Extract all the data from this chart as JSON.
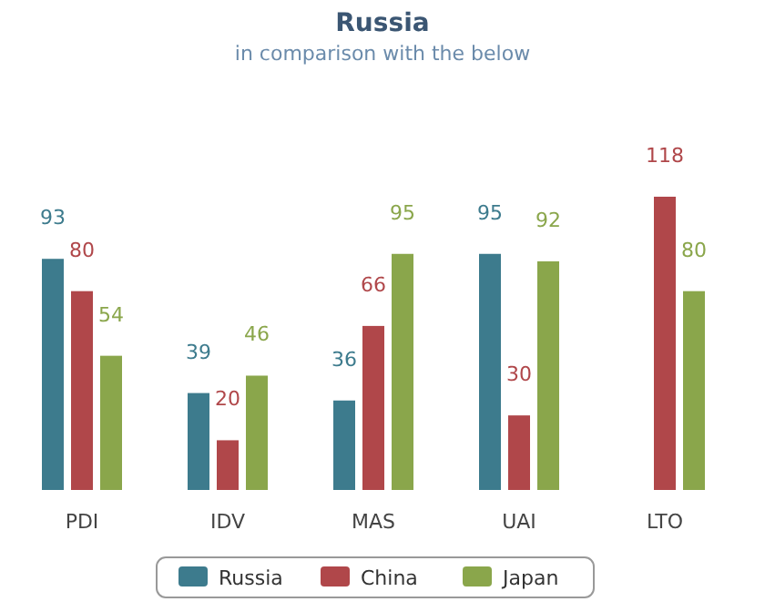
{
  "chart_data": {
    "type": "bar",
    "title": "Russia",
    "subtitle": "in comparison with the below",
    "categories": [
      "PDI",
      "IDV",
      "MAS",
      "UAI",
      "LTO"
    ],
    "series": [
      {
        "name": "Russia",
        "color": "#3d7b8d",
        "values": [
          93,
          39,
          36,
          95,
          null
        ]
      },
      {
        "name": "China",
        "color": "#b0474a",
        "values": [
          80,
          20,
          66,
          30,
          118
        ]
      },
      {
        "name": "Japan",
        "color": "#8aa64b",
        "values": [
          54,
          46,
          95,
          92,
          80
        ]
      }
    ],
    "data_labels": true,
    "legend": "bottom"
  }
}
